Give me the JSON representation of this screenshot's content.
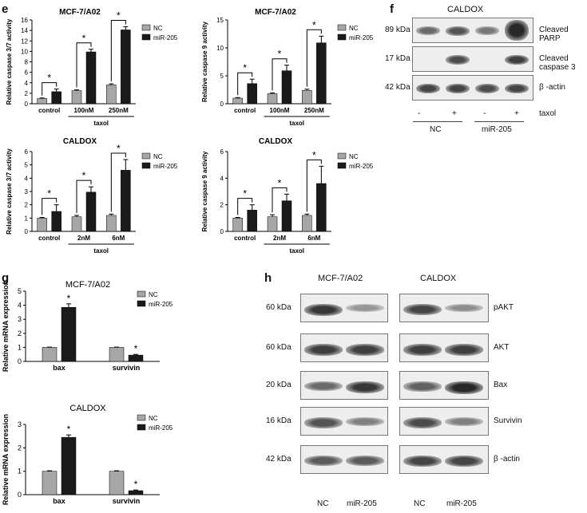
{
  "panels": {
    "e": "e",
    "f": "f",
    "g": "g",
    "h": "h"
  },
  "legend": {
    "nc": "NC",
    "mir": "miR-205"
  },
  "colors": {
    "nc": "#a6a6a6",
    "mir": "#1a1a1a",
    "blot_bg": "#eeeeee",
    "band": "#333333"
  },
  "star": "*",
  "chart_data": [
    {
      "id": "e1",
      "type": "bar",
      "title": "MCF-7/A02",
      "ylabel": "Relative caspase 3/7 activity",
      "ylim": [
        0,
        16
      ],
      "yticks": [
        0,
        2,
        4,
        6,
        8,
        10,
        12,
        14,
        16
      ],
      "categories": [
        "control",
        "100nM",
        "250nM"
      ],
      "group_label": "taxol",
      "series": [
        {
          "name": "NC",
          "values": [
            1.0,
            2.5,
            3.6
          ],
          "errors": [
            0.1,
            0.15,
            0.2
          ]
        },
        {
          "name": "miR-205",
          "values": [
            2.3,
            9.9,
            14.1
          ],
          "errors": [
            0.5,
            0.5,
            0.6
          ]
        }
      ],
      "significance": [
        "*",
        "*",
        "*"
      ]
    },
    {
      "id": "e2",
      "type": "bar",
      "title": "MCF-7/A02",
      "ylabel": "Relative caspase 9 activity",
      "ylim": [
        0,
        15
      ],
      "yticks": [
        0,
        5,
        10,
        15
      ],
      "categories": [
        "control",
        "100nM",
        "250nM"
      ],
      "group_label": "taxol",
      "series": [
        {
          "name": "NC",
          "values": [
            1.0,
            1.8,
            2.4
          ],
          "errors": [
            0.1,
            0.15,
            0.2
          ]
        },
        {
          "name": "miR-205",
          "values": [
            3.6,
            5.9,
            10.9
          ],
          "errors": [
            0.8,
            1.0,
            1.2
          ]
        }
      ],
      "significance": [
        "*",
        "*",
        "*"
      ]
    },
    {
      "id": "e3",
      "type": "bar",
      "title": "CALDOX",
      "ylabel": "Relative caspase 3/7 activity",
      "ylim": [
        0,
        6
      ],
      "yticks": [
        0,
        1,
        2,
        3,
        4,
        5,
        6
      ],
      "categories": [
        "control",
        "2nM",
        "6nM"
      ],
      "group_label": "taxol",
      "series": [
        {
          "name": "NC",
          "values": [
            1.0,
            1.1,
            1.2
          ],
          "errors": [
            0.05,
            0.1,
            0.1
          ]
        },
        {
          "name": "miR-205",
          "values": [
            1.5,
            2.95,
            4.6
          ],
          "errors": [
            0.5,
            0.4,
            0.8
          ]
        }
      ],
      "significance": [
        "*",
        "*",
        "*"
      ]
    },
    {
      "id": "e4",
      "type": "bar",
      "title": "CALDOX",
      "ylabel": "Relative caspase 9 activity",
      "ylim": [
        0,
        6
      ],
      "yticks": [
        0,
        2,
        4,
        6
      ],
      "categories": [
        "control",
        "2nM",
        "6nM"
      ],
      "group_label": "taxol",
      "series": [
        {
          "name": "NC",
          "values": [
            1.0,
            1.1,
            1.2
          ],
          "errors": [
            0.05,
            0.15,
            0.1
          ]
        },
        {
          "name": "miR-205",
          "values": [
            1.6,
            2.3,
            3.6
          ],
          "errors": [
            0.4,
            0.5,
            1.3
          ]
        }
      ],
      "significance": [
        "*",
        "*",
        "*"
      ]
    },
    {
      "id": "g1",
      "type": "bar",
      "title": "MCF-7/A02",
      "ylabel": "Relative mRNA expression",
      "ylim": [
        0,
        5
      ],
      "yticks": [
        0,
        1,
        2,
        3,
        4,
        5
      ],
      "categories": [
        "bax",
        "survivin"
      ],
      "series": [
        {
          "name": "NC",
          "values": [
            1.0,
            1.0
          ],
          "errors": [
            0.02,
            0.02
          ]
        },
        {
          "name": "miR-205",
          "values": [
            3.85,
            0.45
          ],
          "errors": [
            0.25,
            0.05
          ]
        }
      ],
      "significance": [
        "*",
        "*"
      ]
    },
    {
      "id": "g2",
      "type": "bar",
      "title": "CALDOX",
      "ylabel": "Relative mRNA expression",
      "ylim": [
        0,
        3
      ],
      "yticks": [
        0,
        1,
        2,
        3
      ],
      "categories": [
        "bax",
        "survivin"
      ],
      "series": [
        {
          "name": "NC",
          "values": [
            1.0,
            1.0
          ],
          "errors": [
            0.02,
            0.02
          ]
        },
        {
          "name": "miR-205",
          "values": [
            2.45,
            0.17
          ],
          "errors": [
            0.1,
            0.03
          ]
        }
      ],
      "significance": [
        "*",
        "*"
      ]
    }
  ],
  "blot_f": {
    "title": "CALDOX",
    "rows": [
      {
        "kda": "89 kDa",
        "protein": "Cleaved PARP",
        "bands": [
          0.55,
          0.7,
          0.45,
          1.0
        ]
      },
      {
        "kda": "17 kDa",
        "protein": "Cleaved caspase 3",
        "bands": [
          0.0,
          0.75,
          0.0,
          0.85
        ]
      },
      {
        "kda": "42 kDa",
        "protein": "β -actin",
        "bands": [
          0.8,
          0.8,
          0.75,
          0.8
        ]
      }
    ],
    "taxol_marks": [
      "-",
      "+",
      "-",
      "+"
    ],
    "taxol_label": "taxol",
    "groups": [
      "NC",
      "miR-205"
    ]
  },
  "blot_h": {
    "cell_lines": [
      "MCF-7/A02",
      "CALDOX"
    ],
    "rows": [
      {
        "kda": "60 kDa",
        "protein": "pAKT",
        "bands": [
          0.9,
          0.25,
          0.8,
          0.3
        ]
      },
      {
        "kda": "60 kDa",
        "protein": "AKT",
        "bands": [
          0.85,
          0.85,
          0.85,
          0.85
        ]
      },
      {
        "kda": "20 kDa",
        "protein": "Bax",
        "bands": [
          0.55,
          0.9,
          0.6,
          1.0
        ]
      },
      {
        "kda": "16 kDa",
        "protein": "Survivin",
        "bands": [
          0.7,
          0.4,
          0.75,
          0.4
        ]
      },
      {
        "kda": "42 kDa",
        "protein": "β -actin",
        "bands": [
          0.65,
          0.65,
          0.8,
          0.8
        ]
      }
    ],
    "lanes": [
      "NC",
      "miR-205",
      "NC",
      "miR-205"
    ]
  }
}
